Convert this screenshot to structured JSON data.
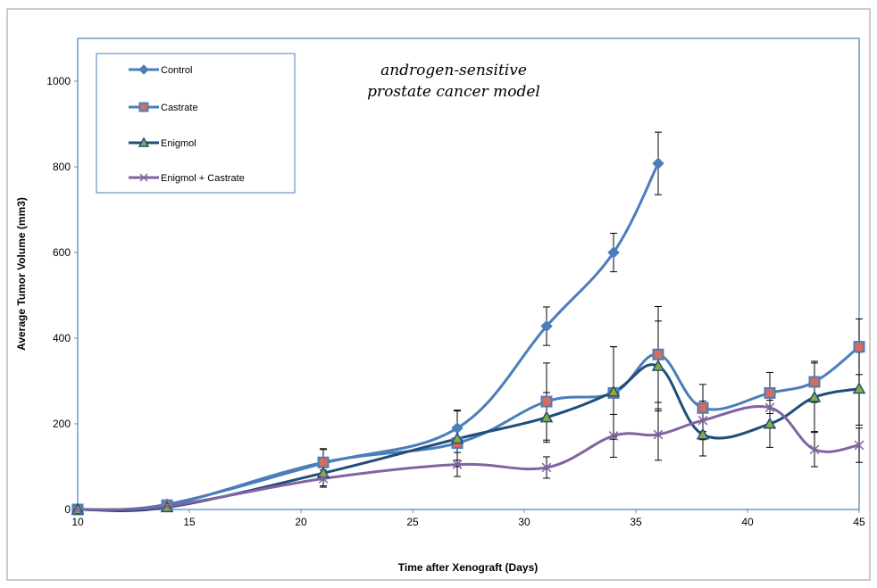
{
  "chart_data": {
    "type": "line",
    "title_lines": [
      "androgen-sensitive",
      "prostate cancer model"
    ],
    "xlabel": "Time after Xenograft  (Days)",
    "ylabel": "Average Tumor Volume (mm3)",
    "xlim": [
      10,
      45
    ],
    "ylim": [
      0,
      1100
    ],
    "x_ticks": [
      10,
      15,
      20,
      25,
      30,
      35,
      40,
      45
    ],
    "y_ticks": [
      0,
      200,
      400,
      600,
      800,
      1000
    ],
    "grid": false,
    "legend_position": "top-left",
    "series": [
      {
        "name": "Control",
        "color": "#4a7ebb",
        "marker": "diamond",
        "x": [
          10,
          14,
          21,
          27,
          31,
          34,
          36
        ],
        "y": [
          0,
          12,
          108,
          190,
          428,
          600,
          808
        ],
        "err": [
          0,
          4,
          32,
          42,
          45,
          45,
          73
        ]
      },
      {
        "name": "Castrate",
        "color": "#4a7ebb",
        "marker_fill": "#d66b5e",
        "marker": "square",
        "x": [
          10,
          14,
          21,
          27,
          31,
          34,
          36,
          38,
          41,
          43,
          45
        ],
        "y": [
          0,
          10,
          110,
          155,
          252,
          272,
          362,
          237,
          272,
          298,
          380
        ],
        "err": [
          0,
          4,
          32,
          40,
          90,
          108,
          112,
          55,
          48,
          48,
          65
        ]
      },
      {
        "name": "Enigmol",
        "color": "#1f4e79",
        "marker_fill": "#8aab3c",
        "marker": "triangle",
        "x": [
          10,
          14,
          21,
          27,
          31,
          34,
          36,
          38,
          41,
          43,
          45
        ],
        "y": [
          0,
          5,
          85,
          165,
          215,
          275,
          335,
          175,
          200,
          262,
          282
        ],
        "err": [
          0,
          3,
          30,
          65,
          58,
          105,
          105,
          50,
          55,
          80,
          85
        ]
      },
      {
        "name": "Enigmol + Castrate",
        "color": "#8064a2",
        "marker": "x",
        "x": [
          10,
          14,
          21,
          27,
          31,
          34,
          36,
          38,
          41,
          43,
          45
        ],
        "y": [
          0,
          8,
          72,
          105,
          98,
          172,
          175,
          208,
          238,
          140,
          150
        ],
        "err": [
          0,
          3,
          20,
          28,
          25,
          50,
          60,
          45,
          45,
          40,
          40
        ]
      }
    ]
  }
}
